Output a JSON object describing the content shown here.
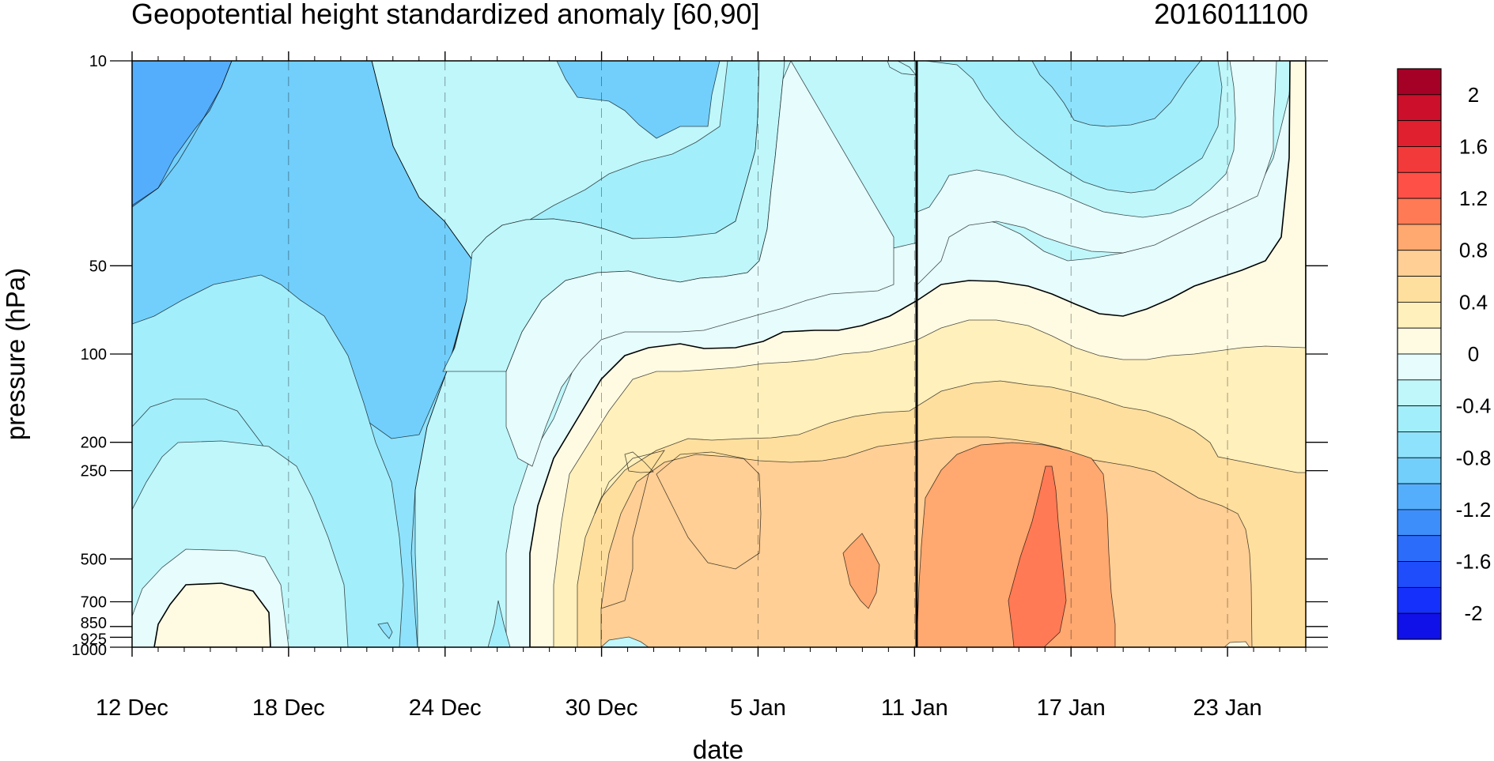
{
  "chart_data": {
    "type": "contour",
    "title": "Geopotential height standardized anomaly [60,90]",
    "date_label": "2016011100",
    "xlabel": "date",
    "ylabel": "pressure (hPa)",
    "x_ticks": [
      "12 Dec",
      "18 Dec",
      "24 Dec",
      "30 Dec",
      "5 Jan",
      "11 Jan",
      "17 Jan",
      "23 Jan"
    ],
    "x_range": [
      "2015-12-12",
      "2016-01-26"
    ],
    "y_scale": "log",
    "y_direction": "reversed",
    "y_ticks": [
      "10",
      "50",
      "100",
      "200",
      "250",
      "500",
      "700",
      "850",
      "925",
      "1000"
    ],
    "y_range": [
      1000,
      10
    ],
    "current_date_marker": "11 Jan",
    "colorbar": {
      "labels": [
        "2",
        "1.6",
        "1.2",
        "0.8",
        "0.4",
        "0",
        "-0.4",
        "-0.8",
        "-1.2",
        "-1.6",
        "-2"
      ],
      "levels": [
        2.2,
        2.0,
        1.8,
        1.6,
        1.4,
        1.2,
        1.0,
        0.8,
        0.6,
        0.4,
        0.2,
        0.0,
        -0.2,
        -0.4,
        -0.6,
        -0.8,
        -1.0,
        -1.2,
        -1.4,
        -1.6,
        -1.8,
        -2.0,
        -2.2
      ],
      "colors": [
        "#a50026",
        "#cc0f2a",
        "#e0202e",
        "#f33a3a",
        "#ff5048",
        "#ff7a55",
        "#ffa870",
        "#ffcf95",
        "#ffdf9e",
        "#fff0bc",
        "#fffbe3",
        "#e6fcfd",
        "#bff7fb",
        "#a3eefb",
        "#8fe2fb",
        "#72cffb",
        "#55aefb",
        "#3d8efb",
        "#2b6cfb",
        "#1f4dfb",
        "#1630fb",
        "#1010e8"
      ]
    },
    "fill_colors": {
      "neg_1_2": "#55aefb",
      "neg_1_0": "#72cffb",
      "neg_0_8": "#8fe2fb",
      "neg_0_6": "#a3eefb",
      "neg_0_4": "#bff7fb",
      "neg_0_2": "#e6fcfd",
      "pos_0_0": "#fffbe3",
      "pos_0_2": "#fff0bc",
      "pos_0_4": "#ffdf9e",
      "pos_0_6": "#ffcf95",
      "pos_0_8": "#ffa870",
      "pos_1_0": "#ff7a55"
    }
  }
}
